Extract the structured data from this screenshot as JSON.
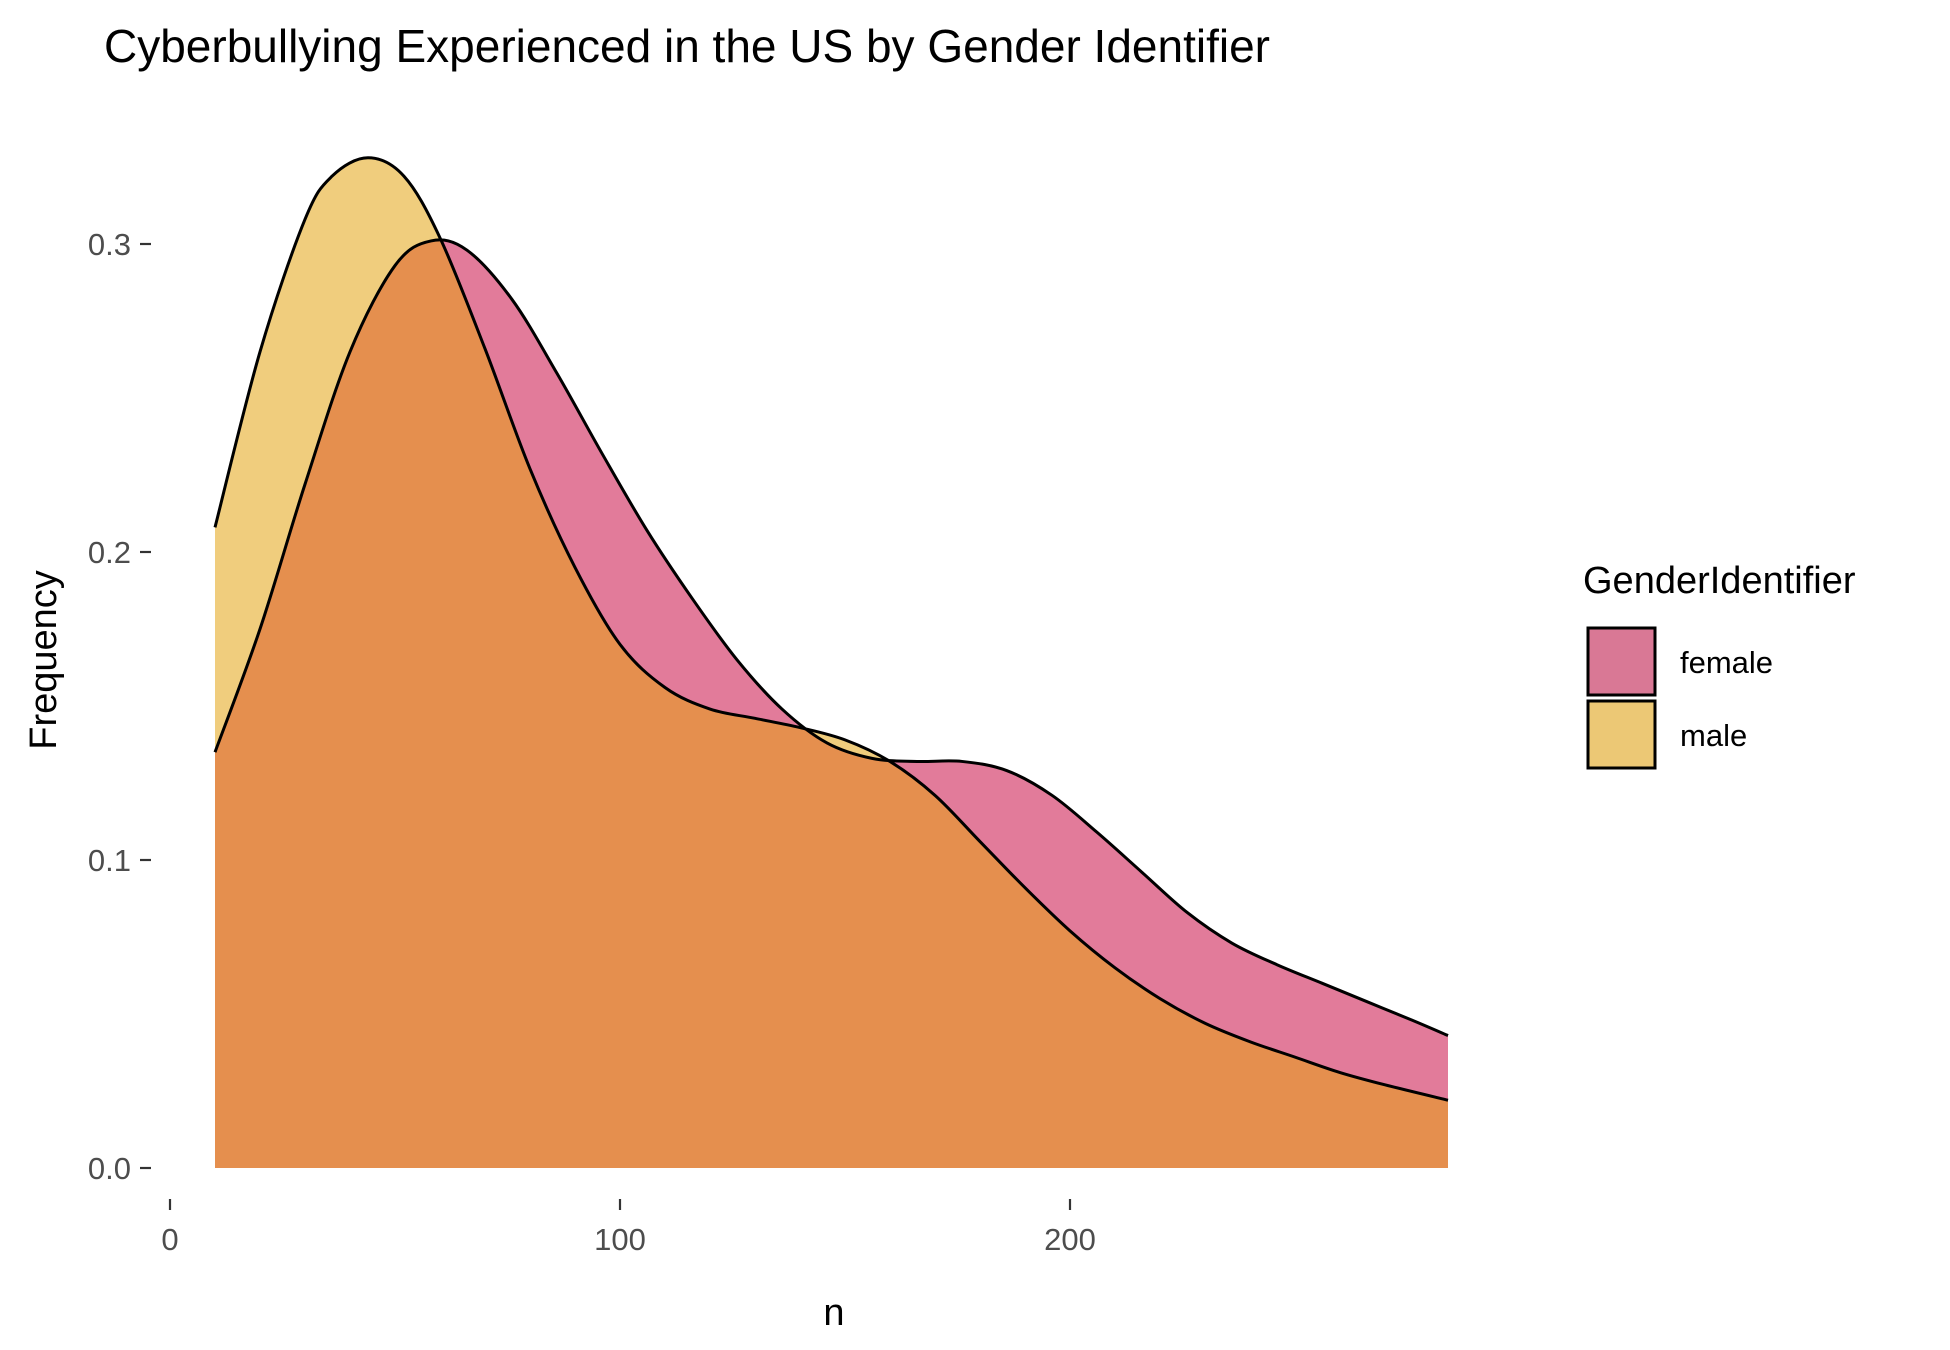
{
  "chart_data": {
    "type": "area",
    "title": "Cyberbullying Experienced in the US by Gender Identifier",
    "xlabel": "n",
    "ylabel": "Frequency",
    "xlim": [
      0,
      285
    ],
    "ylim": [
      0,
      0.33
    ],
    "x_ticks": [
      0,
      100,
      200
    ],
    "x_tick_labels": [
      "0",
      "100",
      "200"
    ],
    "y_ticks": [
      0.0,
      0.1,
      0.2,
      0.3
    ],
    "y_tick_labels": [
      "0.0",
      "0.1",
      "0.2",
      "0.3"
    ],
    "grid": false,
    "legend": {
      "title": "GenderIdentifier",
      "position": "right",
      "entries": [
        "female",
        "male"
      ]
    },
    "series": [
      {
        "name": "female",
        "color": "#d6336c",
        "x": [
          10,
          20,
          30,
          40,
          50,
          58,
          66,
          76,
          86,
          96,
          106,
          116,
          126,
          136,
          146,
          156,
          166,
          176,
          186,
          196,
          206,
          216,
          226,
          236,
          246,
          256,
          266,
          276,
          284
        ],
        "values": [
          0.135,
          0.175,
          0.222,
          0.265,
          0.293,
          0.301,
          0.298,
          0.282,
          0.258,
          0.232,
          0.207,
          0.185,
          0.165,
          0.149,
          0.138,
          0.133,
          0.132,
          0.132,
          0.129,
          0.121,
          0.109,
          0.096,
          0.083,
          0.073,
          0.066,
          0.06,
          0.054,
          0.048,
          0.043
        ]
      },
      {
        "name": "male",
        "color": "#e8b84a",
        "x": [
          10,
          20,
          30,
          36,
          44,
          52,
          60,
          70,
          80,
          90,
          100,
          110,
          120,
          130,
          140,
          150,
          160,
          170,
          180,
          190,
          200,
          210,
          220,
          230,
          240,
          250,
          260,
          270,
          284
        ],
        "values": [
          0.208,
          0.265,
          0.308,
          0.322,
          0.328,
          0.322,
          0.302,
          0.266,
          0.227,
          0.195,
          0.17,
          0.156,
          0.149,
          0.146,
          0.143,
          0.139,
          0.132,
          0.121,
          0.106,
          0.091,
          0.077,
          0.065,
          0.055,
          0.047,
          0.041,
          0.036,
          0.031,
          0.027,
          0.022
        ]
      }
    ]
  }
}
